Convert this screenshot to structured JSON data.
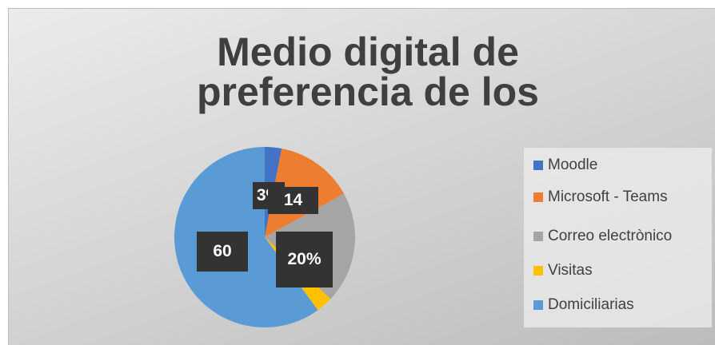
{
  "chart_data": {
    "type": "pie",
    "title": "Medio digital de preferencia de los",
    "categories": [
      "Moodle",
      "Microsoft - Teams",
      "Correo electrònico",
      "Visitas",
      "Domiciliarias"
    ],
    "values": [
      3,
      14,
      20,
      3,
      60
    ],
    "value_labels": [
      "3%",
      "14",
      "20%",
      null,
      "60"
    ],
    "colors": [
      "#4472c4",
      "#ed7d31",
      "#a5a5a5",
      "#ffc000",
      "#5b9bd5"
    ],
    "legend": "right"
  }
}
